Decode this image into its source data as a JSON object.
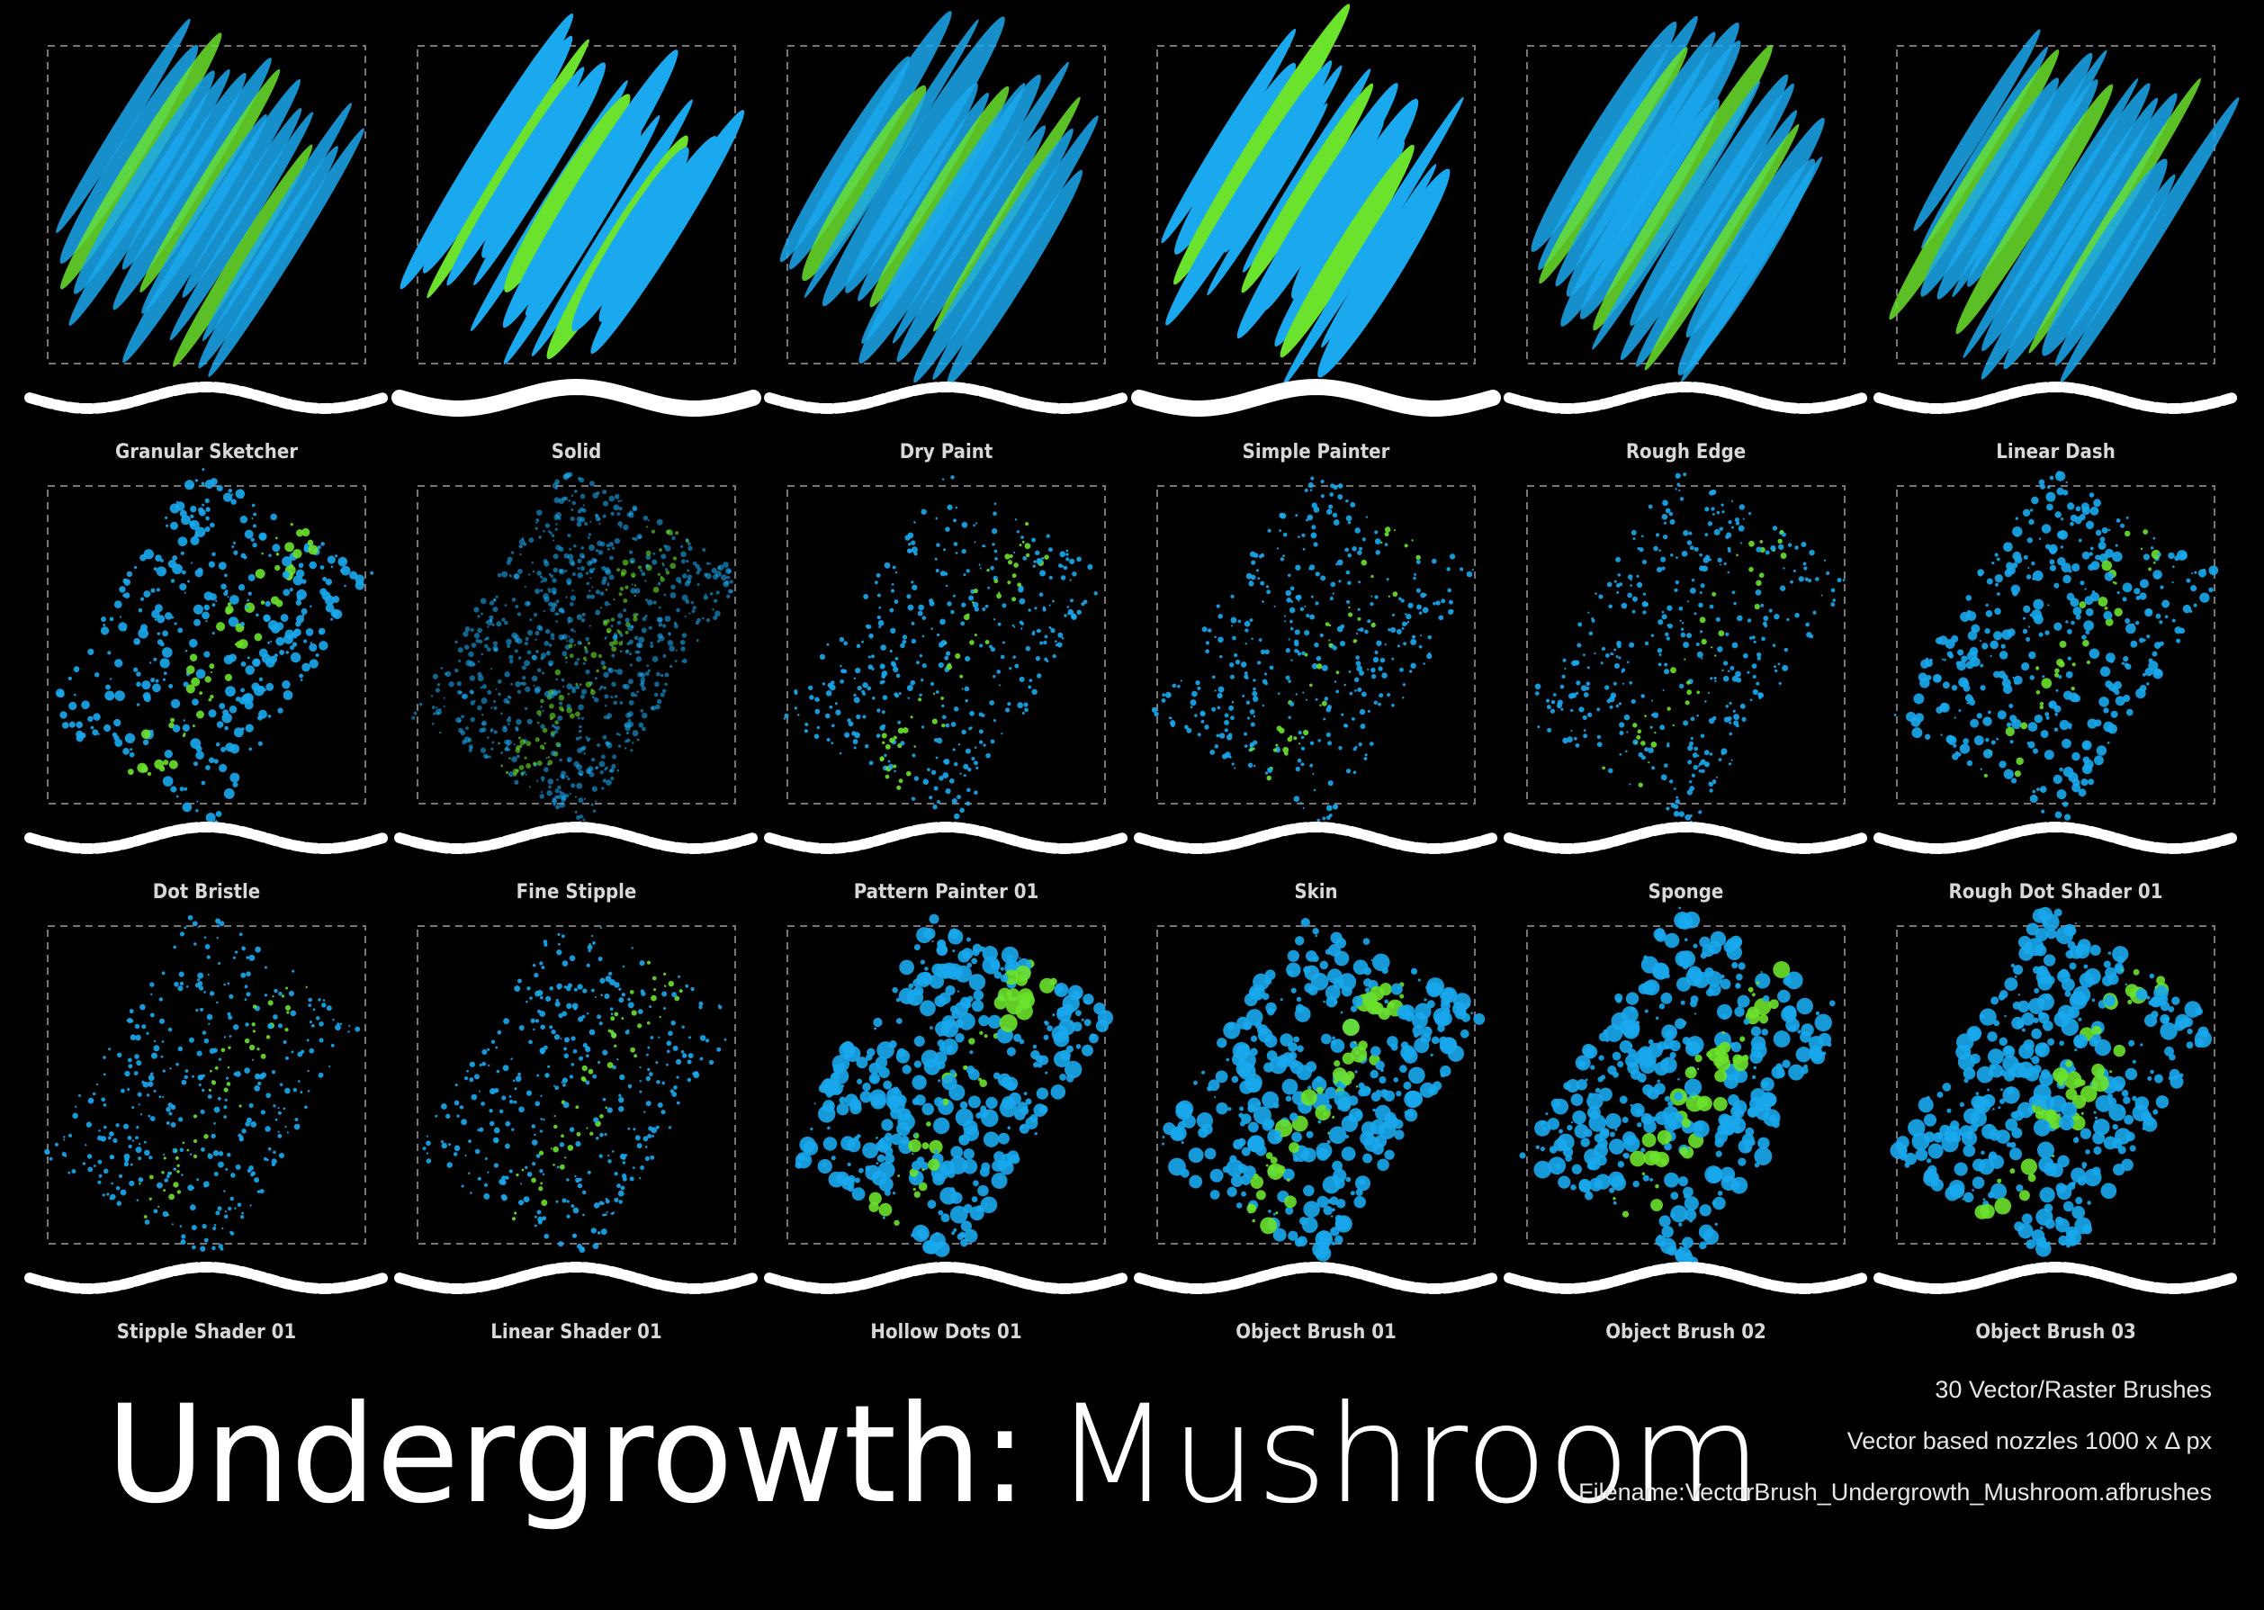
{
  "title": {
    "main": "Undergrowth:",
    "sub": "Mushroom"
  },
  "info": [
    "30 Vector/Raster Brushes",
    "Vector based nozzles 1000 x Δ px",
    "Filename:VectorBrush_Undergrowth_Mushroom.afbrushes"
  ],
  "brushes": [
    "Granular Sketcher",
    "Solid",
    "Dry Paint",
    "Simple Painter",
    "Rough Edge",
    "Linear Dash",
    "Dot Bristle",
    "Fine Stipple",
    "Pattern Painter 01",
    "Skin",
    "Sponge",
    "Rough Dot Shader 01",
    "Stipple Shader 01",
    "Linear Shader 01",
    "Hollow Dots 01",
    "Object Brush 01",
    "Object Brush 02",
    "Object Brush 03"
  ]
}
